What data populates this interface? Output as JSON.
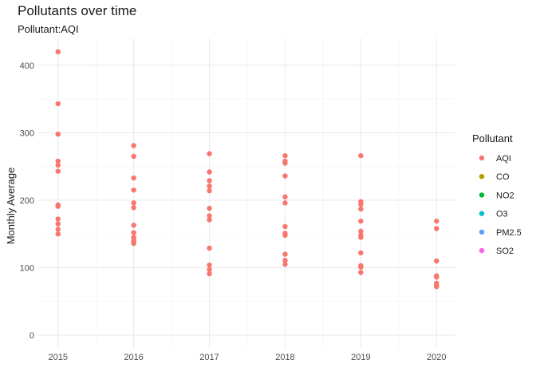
{
  "chart_data": {
    "type": "scatter",
    "title": "Pollutants over time",
    "subtitle": "Pollutant:AQI",
    "xlabel": "",
    "ylabel": "Monthly Average",
    "xlim": [
      2014.75,
      2020.25
    ],
    "ylim": [
      -20,
      440
    ],
    "x_ticks": [
      2015,
      2016,
      2017,
      2018,
      2019,
      2020
    ],
    "y_ticks": [
      0,
      100,
      200,
      300,
      400
    ],
    "grid": true,
    "legend": {
      "title": "Pollutant",
      "position": "right",
      "entries": [
        {
          "name": "AQI",
          "color": "#F8766D"
        },
        {
          "name": "CO",
          "color": "#B79F00"
        },
        {
          "name": "NO2",
          "color": "#00BA38"
        },
        {
          "name": "O3",
          "color": "#00BFC4"
        },
        {
          "name": "PM2.5",
          "color": "#619CFF"
        },
        {
          "name": "SO2",
          "color": "#F564E3"
        }
      ]
    },
    "series": [
      {
        "name": "AQI",
        "color": "#F8766D",
        "points": [
          {
            "x": 2015,
            "y": 420
          },
          {
            "x": 2015,
            "y": 343
          },
          {
            "x": 2015,
            "y": 298
          },
          {
            "x": 2015,
            "y": 258
          },
          {
            "x": 2015,
            "y": 252
          },
          {
            "x": 2015,
            "y": 243
          },
          {
            "x": 2015,
            "y": 193
          },
          {
            "x": 2015,
            "y": 191
          },
          {
            "x": 2015,
            "y": 172
          },
          {
            "x": 2015,
            "y": 165
          },
          {
            "x": 2015,
            "y": 157
          },
          {
            "x": 2015,
            "y": 150
          },
          {
            "x": 2016,
            "y": 281
          },
          {
            "x": 2016,
            "y": 265
          },
          {
            "x": 2016,
            "y": 233
          },
          {
            "x": 2016,
            "y": 215
          },
          {
            "x": 2016,
            "y": 196
          },
          {
            "x": 2016,
            "y": 189
          },
          {
            "x": 2016,
            "y": 163
          },
          {
            "x": 2016,
            "y": 152
          },
          {
            "x": 2016,
            "y": 145
          },
          {
            "x": 2016,
            "y": 141
          },
          {
            "x": 2016,
            "y": 138
          },
          {
            "x": 2016,
            "y": 136
          },
          {
            "x": 2017,
            "y": 269
          },
          {
            "x": 2017,
            "y": 242
          },
          {
            "x": 2017,
            "y": 229
          },
          {
            "x": 2017,
            "y": 221
          },
          {
            "x": 2017,
            "y": 214
          },
          {
            "x": 2017,
            "y": 188
          },
          {
            "x": 2017,
            "y": 177
          },
          {
            "x": 2017,
            "y": 171
          },
          {
            "x": 2017,
            "y": 129
          },
          {
            "x": 2017,
            "y": 104
          },
          {
            "x": 2017,
            "y": 97
          },
          {
            "x": 2017,
            "y": 91
          },
          {
            "x": 2018,
            "y": 266
          },
          {
            "x": 2018,
            "y": 258
          },
          {
            "x": 2018,
            "y": 255
          },
          {
            "x": 2018,
            "y": 236
          },
          {
            "x": 2018,
            "y": 205
          },
          {
            "x": 2018,
            "y": 196
          },
          {
            "x": 2018,
            "y": 161
          },
          {
            "x": 2018,
            "y": 151
          },
          {
            "x": 2018,
            "y": 148
          },
          {
            "x": 2018,
            "y": 120
          },
          {
            "x": 2018,
            "y": 111
          },
          {
            "x": 2018,
            "y": 105
          },
          {
            "x": 2019,
            "y": 266
          },
          {
            "x": 2019,
            "y": 198
          },
          {
            "x": 2019,
            "y": 194
          },
          {
            "x": 2019,
            "y": 187
          },
          {
            "x": 2019,
            "y": 169
          },
          {
            "x": 2019,
            "y": 154
          },
          {
            "x": 2019,
            "y": 148
          },
          {
            "x": 2019,
            "y": 145
          },
          {
            "x": 2019,
            "y": 122
          },
          {
            "x": 2019,
            "y": 103
          },
          {
            "x": 2019,
            "y": 101
          },
          {
            "x": 2019,
            "y": 93
          },
          {
            "x": 2020,
            "y": 169
          },
          {
            "x": 2020,
            "y": 158
          },
          {
            "x": 2020,
            "y": 110
          },
          {
            "x": 2020,
            "y": 88
          },
          {
            "x": 2020,
            "y": 86
          },
          {
            "x": 2020,
            "y": 77
          },
          {
            "x": 2020,
            "y": 74
          },
          {
            "x": 2020,
            "y": 72
          }
        ]
      }
    ]
  }
}
